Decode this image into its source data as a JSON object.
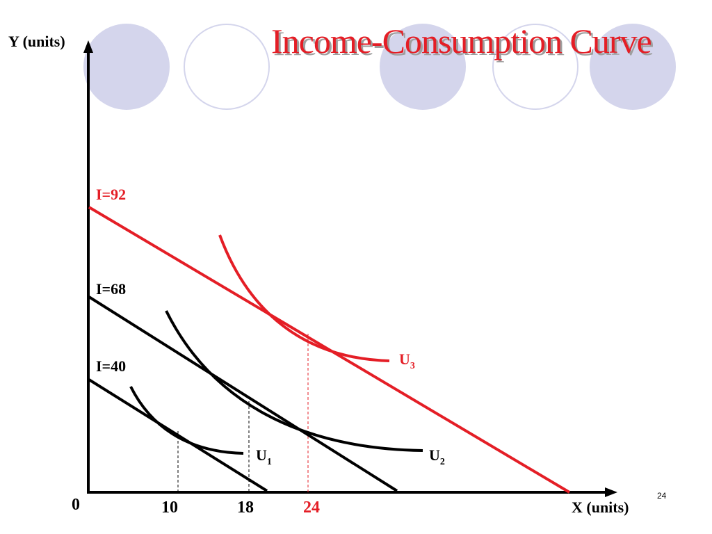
{
  "title": "Income-Consumption Curve",
  "page_number": "24",
  "colors": {
    "accent": "#e41e26",
    "circle_fill": "#d4d5ec",
    "circle_stroke": "#d4d5ec",
    "axis": "#000000"
  },
  "axes": {
    "y_label": "Y (units)",
    "x_label": "X (units)",
    "origin_label": "0"
  },
  "budget_lines": [
    {
      "label": "I=40",
      "color": "#000000"
    },
    {
      "label": "I=68",
      "color": "#000000"
    },
    {
      "label": "I=92",
      "color": "#e41e26"
    }
  ],
  "indifference_curves": [
    {
      "label": "U",
      "subscript": "1",
      "color": "#000000"
    },
    {
      "label": "U",
      "subscript": "2",
      "color": "#000000"
    },
    {
      "label": "U",
      "subscript": "3",
      "color": "#e41e26"
    }
  ],
  "x_ticks": [
    {
      "label": "10",
      "color": "#000000"
    },
    {
      "label": "18",
      "color": "#000000"
    },
    {
      "label": "24",
      "color": "#e41e26"
    }
  ]
}
